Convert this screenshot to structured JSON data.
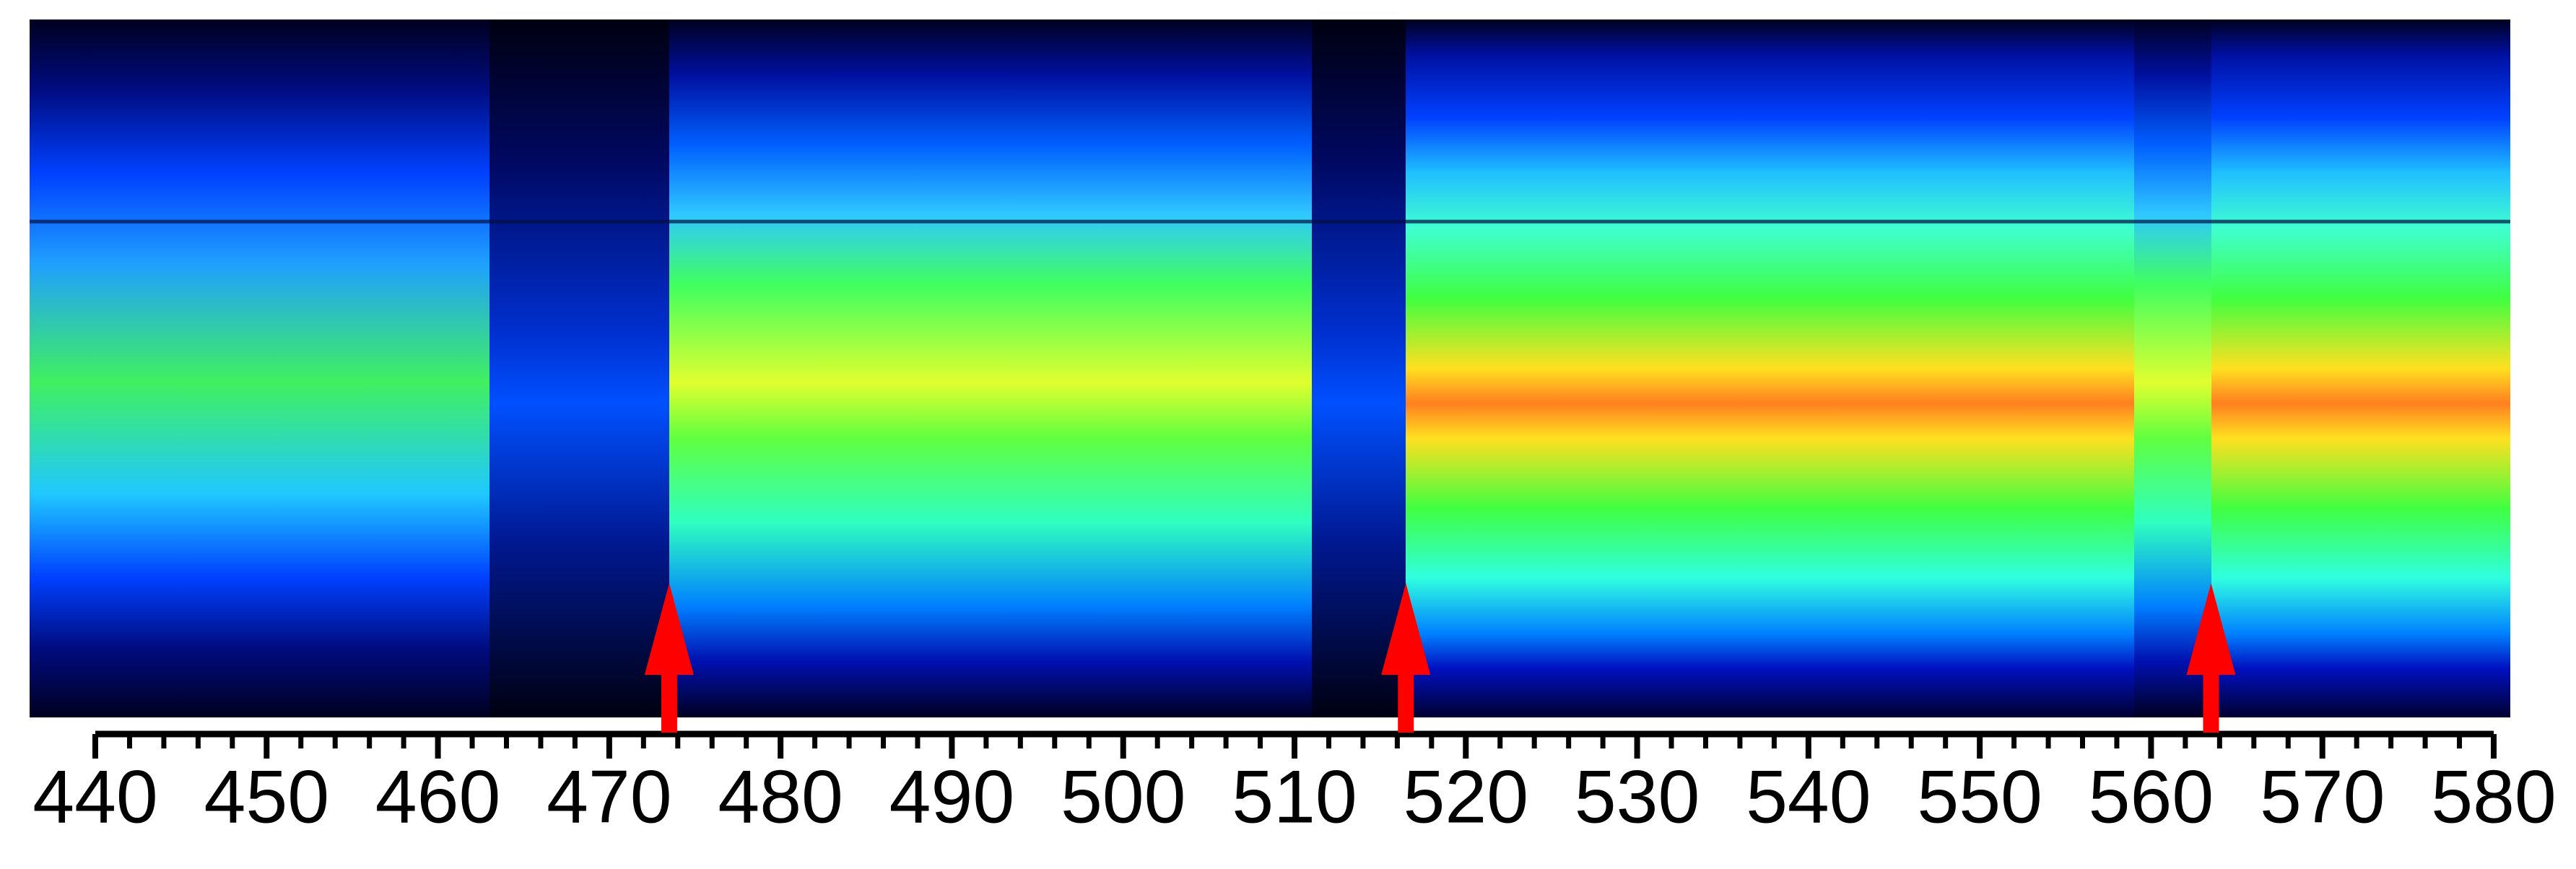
{
  "chart_data": {
    "type": "spectrum",
    "xlim": [
      440,
      580
    ],
    "xticks": [
      440,
      450,
      460,
      470,
      480,
      490,
      500,
      510,
      520,
      530,
      540,
      550,
      560,
      570,
      580
    ],
    "xminorticks": [
      442,
      444,
      446,
      448,
      452,
      454,
      456,
      458,
      462,
      464,
      466,
      468,
      472,
      474,
      476,
      478,
      482,
      484,
      486,
      488,
      492,
      494,
      496,
      498,
      502,
      504,
      506,
      508,
      512,
      514,
      516,
      518,
      522,
      524,
      526,
      528,
      532,
      534,
      536,
      538,
      542,
      544,
      546,
      548,
      552,
      554,
      556,
      558,
      562,
      564,
      566,
      568,
      572,
      574,
      576,
      578
    ],
    "markers": [
      473.5,
      516.5,
      563.5
    ],
    "marker_color": "#ff0000"
  }
}
